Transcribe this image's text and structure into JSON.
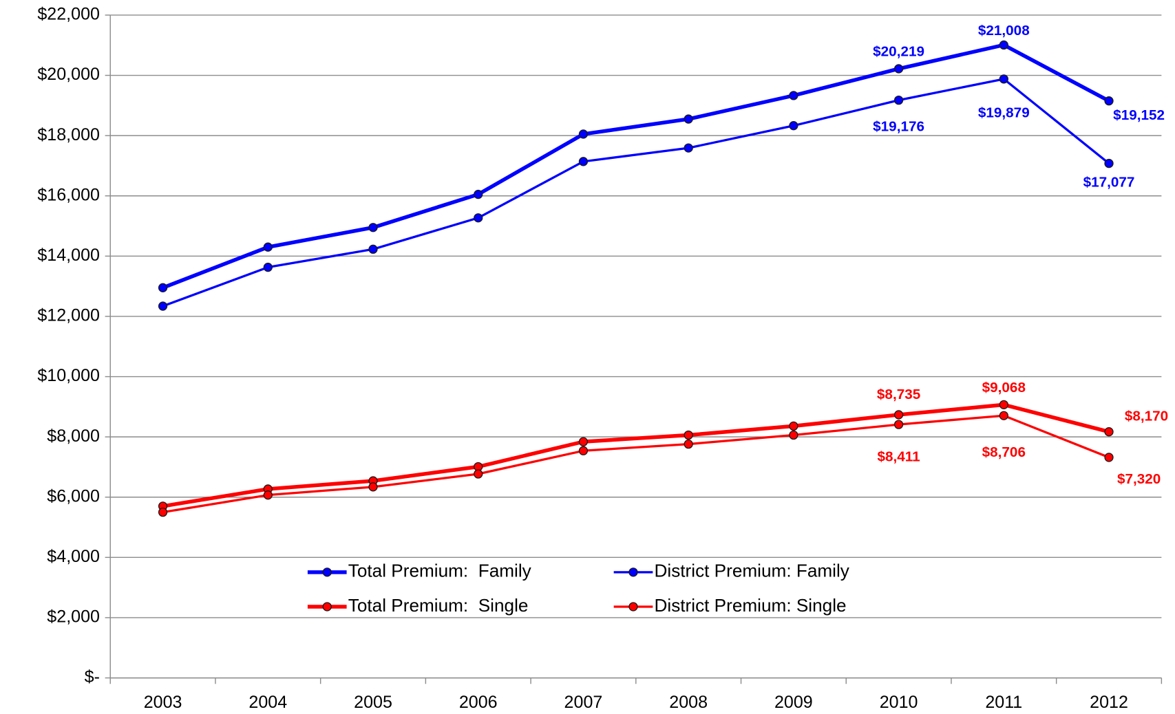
{
  "chart_data": {
    "type": "line",
    "categories": [
      "2003",
      "2004",
      "2005",
      "2006",
      "2007",
      "2008",
      "2009",
      "2010",
      "2011",
      "2012"
    ],
    "ylim": [
      0,
      22000
    ],
    "yticks": [
      {
        "value": 0,
        "label": "$-"
      },
      {
        "value": 2000,
        "label": "$2,000"
      },
      {
        "value": 4000,
        "label": "$4,000"
      },
      {
        "value": 6000,
        "label": "$6,000"
      },
      {
        "value": 8000,
        "label": "$8,000"
      },
      {
        "value": 10000,
        "label": "$10,000"
      },
      {
        "value": 12000,
        "label": "$12,000"
      },
      {
        "value": 14000,
        "label": "$14,000"
      },
      {
        "value": 16000,
        "label": "$16,000"
      },
      {
        "value": 18000,
        "label": "$18,000"
      },
      {
        "value": 20000,
        "label": "$20,000"
      },
      {
        "value": 22000,
        "label": "$22,000"
      }
    ],
    "grid": true,
    "series": [
      {
        "name": "Total Premium:  Family",
        "color": "#0000ff",
        "values": [
          12950,
          14300,
          14950,
          16050,
          18050,
          18550,
          19330,
          20219,
          21008,
          19152
        ],
        "value_labels": [
          null,
          null,
          null,
          null,
          null,
          null,
          null,
          "$20,219",
          "$21,008",
          "$19,152"
        ]
      },
      {
        "name": "District Premium: Family",
        "color": "#0000ff",
        "values": [
          12340,
          13630,
          14230,
          15270,
          17140,
          17590,
          18330,
          19176,
          19879,
          17077
        ],
        "value_labels": [
          null,
          null,
          null,
          null,
          null,
          null,
          null,
          "$19,176",
          "$19,879",
          "$17,077"
        ]
      },
      {
        "name": "Total Premium:  Single",
        "color": "#ff0000",
        "values": [
          5700,
          6270,
          6540,
          7010,
          7840,
          8060,
          8360,
          8735,
          9068,
          8170
        ],
        "value_labels": [
          null,
          null,
          null,
          null,
          null,
          null,
          null,
          "$8,735",
          "$9,068",
          "$8,170"
        ]
      },
      {
        "name": "District Premium: Single",
        "color": "#ff0000",
        "values": [
          5500,
          6070,
          6340,
          6770,
          7540,
          7760,
          8060,
          8411,
          8706,
          7320
        ],
        "value_labels": [
          null,
          null,
          null,
          null,
          null,
          null,
          null,
          "$8,411",
          "$8,706",
          "$7,320"
        ]
      }
    ]
  }
}
